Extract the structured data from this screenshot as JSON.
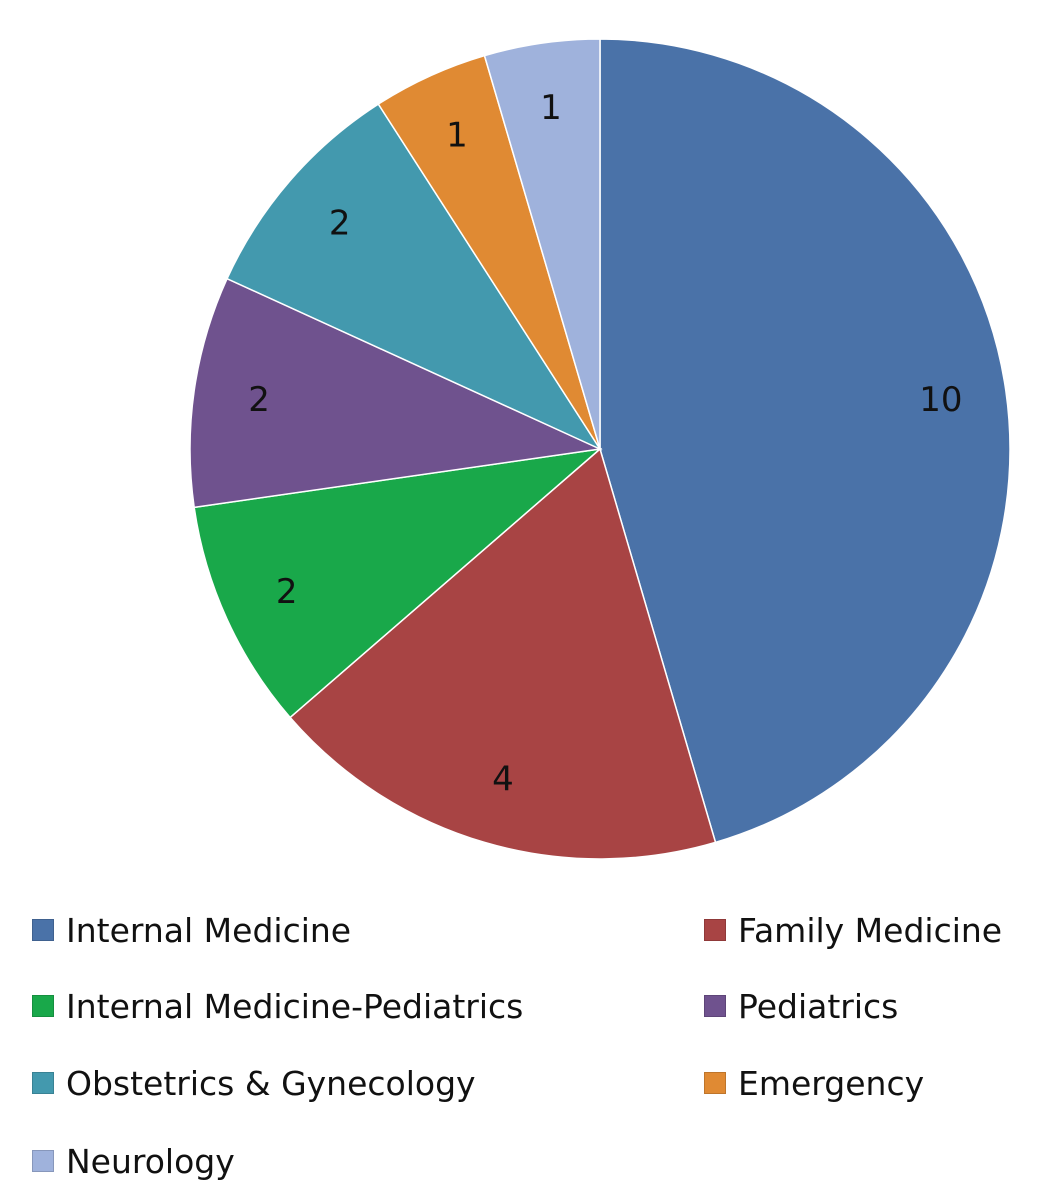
{
  "chart_data": {
    "type": "pie",
    "title": "",
    "legend_position": "bottom",
    "slices": [
      {
        "label": "Internal Medicine",
        "value": 10,
        "color": "#4A72A8"
      },
      {
        "label": "Family Medicine",
        "value": 4,
        "color": "#A84444"
      },
      {
        "label": "Internal Medicine-Pediatrics",
        "value": 2,
        "color": "#19A84A"
      },
      {
        "label": "Pediatrics",
        "value": 2,
        "color": "#6F528E"
      },
      {
        "label": "Obstetrics & Gynecology",
        "value": 2,
        "color": "#4399AE"
      },
      {
        "label": "Emergency",
        "value": 1,
        "color": "#E08A33"
      },
      {
        "label": "Neurology",
        "value": 1,
        "color": "#9FB2DC"
      }
    ]
  }
}
